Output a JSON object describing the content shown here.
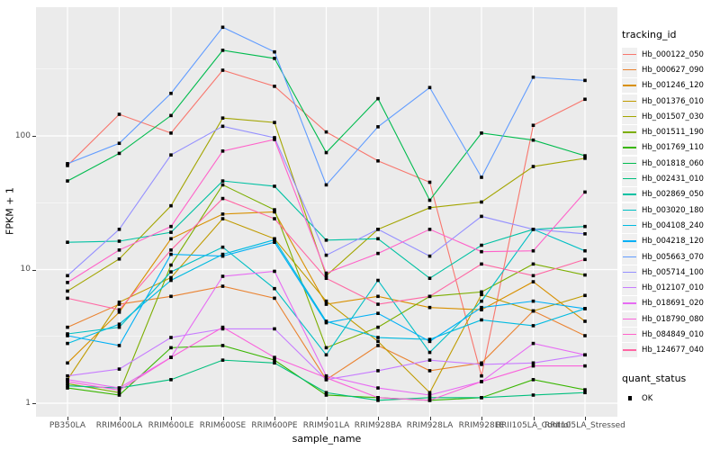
{
  "chart_data": {
    "type": "line",
    "title": "",
    "xlabel": "sample_name",
    "ylabel": "FPKM + 1",
    "y_scale": "log10",
    "y_ticks": [
      1,
      10,
      100
    ],
    "ylim": [
      0.85,
      920
    ],
    "grid": "on",
    "legend_position": "right",
    "point_shape": "black-square",
    "categories": [
      "PB350LA",
      "RRIM600LA",
      "RRIM600LE",
      "RRIM600SE",
      "RRIM600PE",
      "RRIM901LA",
      "RRIM928BA",
      "RRIM928LA",
      "RRIM928LE",
      "RRII105LA_Control",
      "RRII105LA_Stressed"
    ],
    "legend": {
      "series_title": "tracking_id",
      "shape_title": "quant_status",
      "shape_label": "OK"
    },
    "series": [
      {
        "name": "Hb_000122_050",
        "color": "#F8766D",
        "values": [
          60,
          145,
          105,
          310,
          235,
          107,
          65,
          45,
          1.6,
          120,
          188
        ]
      },
      {
        "name": "Hb_000627_090",
        "color": "#EA8331",
        "values": [
          3.7,
          5.5,
          6.3,
          7.5,
          6.1,
          1.5,
          2.7,
          1.75,
          2.0,
          4.9,
          3.2
        ]
      },
      {
        "name": "Hb_001246_120",
        "color": "#D89000",
        "values": [
          2.0,
          4.8,
          17,
          26,
          27,
          5.5,
          6.3,
          5.2,
          5.0,
          8.1,
          4.1
        ]
      },
      {
        "name": "Hb_001376_010",
        "color": "#C09B00",
        "values": [
          1.5,
          5.7,
          8.7,
          24,
          17,
          5.8,
          2.9,
          1.2,
          6.5,
          4.9,
          6.4
        ]
      },
      {
        "name": "Hb_001507_030",
        "color": "#A3A500",
        "values": [
          6.9,
          12,
          30,
          136,
          126,
          9,
          20,
          29,
          32,
          59,
          68
        ]
      },
      {
        "name": "Hb_001511_190",
        "color": "#7CAE00",
        "values": [
          1.4,
          1.2,
          10.8,
          43,
          28,
          2.6,
          3.7,
          6.3,
          6.8,
          11,
          9.1
        ]
      },
      {
        "name": "Hb_001769_110",
        "color": "#39B600",
        "values": [
          1.3,
          1.15,
          2.6,
          2.7,
          2.1,
          1.15,
          1.1,
          1.05,
          1.1,
          1.5,
          1.26
        ]
      },
      {
        "name": "Hb_001818_060",
        "color": "#00BB4E",
        "values": [
          46,
          74,
          142,
          437,
          380,
          75,
          190,
          33,
          105,
          93,
          71
        ]
      },
      {
        "name": "Hb_002431_010",
        "color": "#00BF7D",
        "values": [
          1.35,
          1.3,
          1.5,
          2.1,
          2.0,
          1.2,
          1.05,
          1.1,
          1.1,
          1.15,
          1.2
        ]
      },
      {
        "name": "Hb_002869_050",
        "color": "#00C1A3",
        "values": [
          16,
          16.3,
          19,
          46,
          42,
          16.6,
          17,
          8.6,
          15.2,
          20,
          21
        ]
      },
      {
        "name": "Hb_003020_180",
        "color": "#00BFC4",
        "values": [
          3.3,
          3.7,
          9.6,
          14.7,
          7.2,
          2.3,
          8.3,
          2.4,
          5.8,
          20,
          13.8
        ]
      },
      {
        "name": "Hb_004108_240",
        "color": "#00BAE0",
        "values": [
          2.8,
          3.9,
          8.3,
          13,
          16.7,
          4.1,
          3.1,
          3.0,
          4.2,
          3.8,
          5.1
        ]
      },
      {
        "name": "Hb_004218_120",
        "color": "#00B0F6",
        "values": [
          3.2,
          2.7,
          13,
          12.6,
          16,
          4.0,
          4.7,
          2.9,
          5.2,
          5.8,
          5.1
        ]
      },
      {
        "name": "Hb_005663_070",
        "color": "#619CFF",
        "values": [
          62,
          88,
          208,
          650,
          425,
          43,
          117,
          230,
          49,
          275,
          260
        ]
      },
      {
        "name": "Hb_005714_100",
        "color": "#9590FF",
        "values": [
          9,
          20,
          72,
          118,
          97,
          12.8,
          20,
          12.6,
          25,
          20,
          18.5
        ]
      },
      {
        "name": "Hb_012107_010",
        "color": "#C77CFF",
        "values": [
          1.6,
          1.8,
          3.1,
          3.6,
          3.6,
          1.5,
          1.75,
          2.1,
          1.95,
          2.0,
          2.3
        ]
      },
      {
        "name": "Hb_018691_020",
        "color": "#E76BF3",
        "values": [
          1.5,
          1.3,
          2.2,
          8.9,
          9.7,
          1.6,
          1.3,
          1.15,
          1.45,
          2.8,
          2.3
        ]
      },
      {
        "name": "Hb_018790_080",
        "color": "#FA62DB",
        "values": [
          1.45,
          1.25,
          2.2,
          3.7,
          2.2,
          1.55,
          1.1,
          1.05,
          1.45,
          1.9,
          1.9
        ]
      },
      {
        "name": "Hb_084849_010",
        "color": "#FF61C9",
        "values": [
          8.0,
          14,
          21,
          77,
          94,
          9.4,
          13.2,
          20,
          13.6,
          13.8,
          38
        ]
      },
      {
        "name": "Hb_124677_040",
        "color": "#FF67A4",
        "values": [
          6.1,
          5.0,
          14,
          34,
          24,
          8.6,
          5.5,
          6.3,
          11,
          9,
          11.9
        ]
      }
    ],
    "colors": {
      "panel_background": "#EBEBEB",
      "gridline": "#FFFFFF",
      "tick_text": "#4D4D4D",
      "point": "#000000"
    }
  }
}
